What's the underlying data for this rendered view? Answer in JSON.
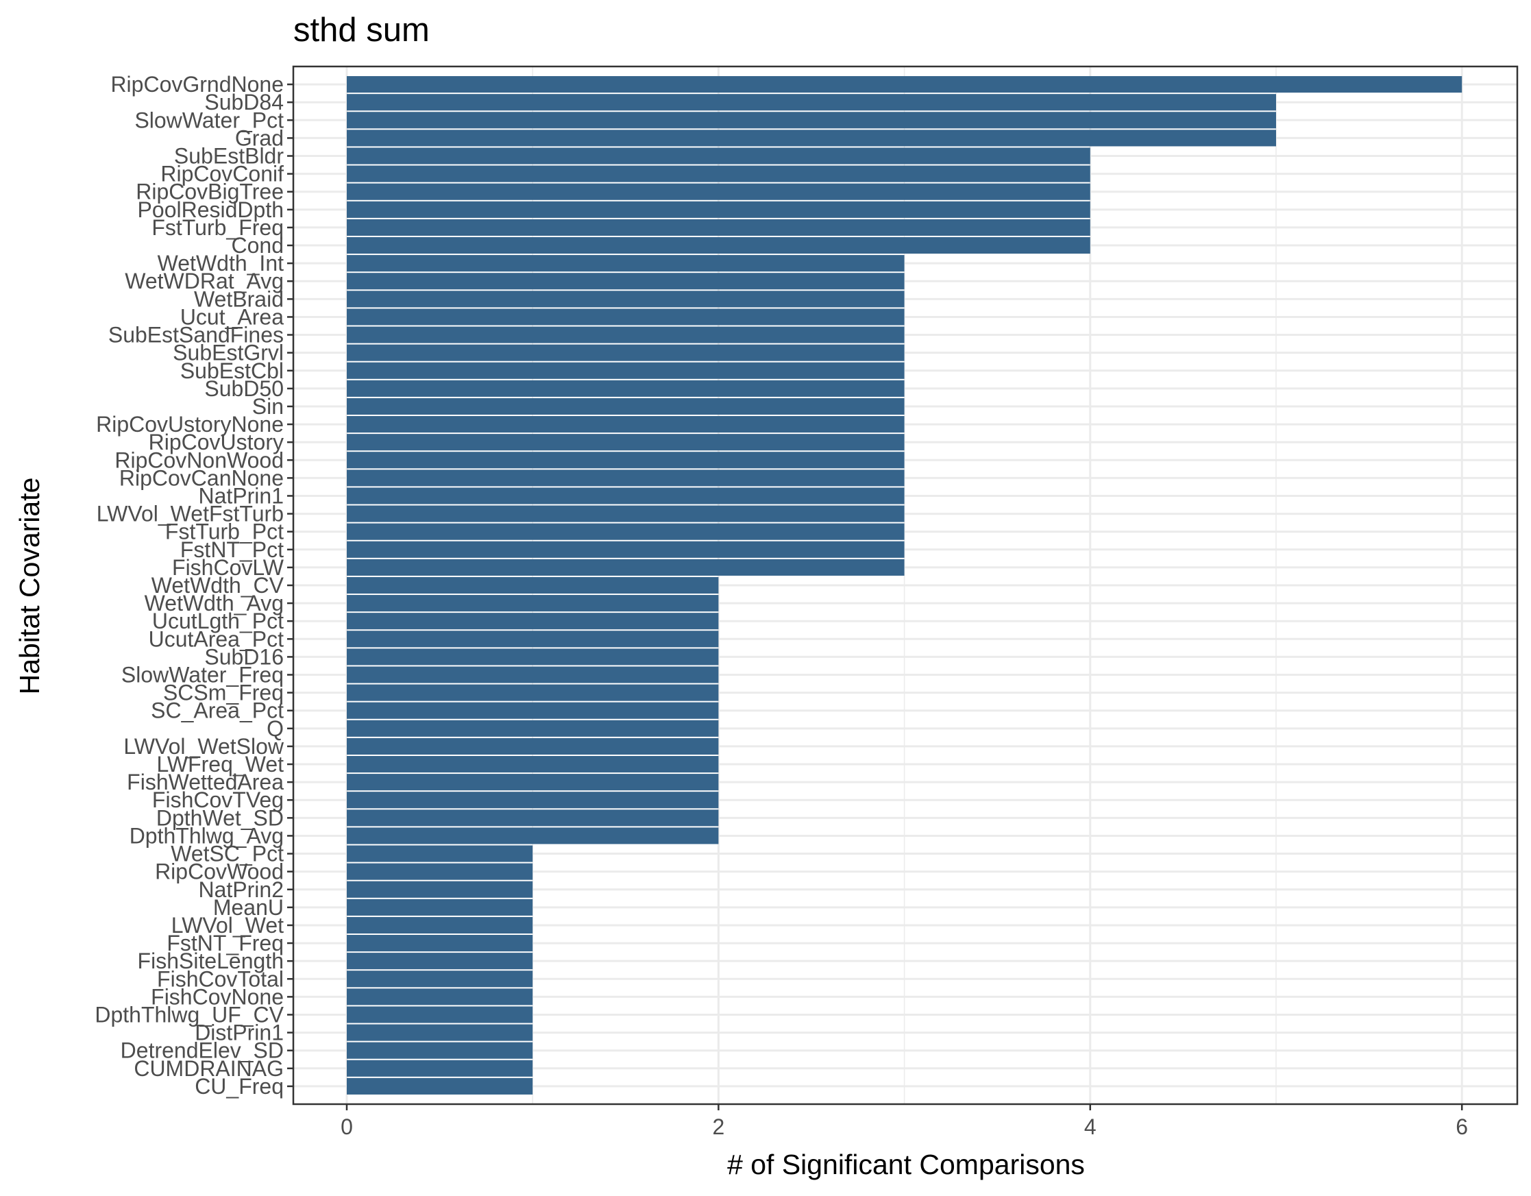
{
  "chart_data": {
    "type": "bar",
    "orientation": "horizontal",
    "title": "sthd sum",
    "xlabel": "# of Significant Comparisons",
    "ylabel": "Habitat Covariate",
    "xlim": [
      -0.3,
      6.3
    ],
    "xticks": [
      "0",
      "2",
      "4",
      "6"
    ],
    "grid": true,
    "bar_color": "#36648B",
    "categories": [
      "RipCovGrndNone",
      "SubD84",
      "SlowWater_Pct",
      "Grad",
      "SubEstBldr",
      "RipCovConif",
      "RipCovBigTree",
      "PoolResidDpth",
      "FstTurb_Freq",
      "Cond",
      "WetWdth_Int",
      "WetWDRat_Avg",
      "WetBraid",
      "Ucut_Area",
      "SubEstSandFines",
      "SubEstGrvl",
      "SubEstCbl",
      "SubD50",
      "Sin",
      "RipCovUstoryNone",
      "RipCovUstory",
      "RipCovNonWood",
      "RipCovCanNone",
      "NatPrin1",
      "LWVol_WetFstTurb",
      "FstTurb_Pct",
      "FstNT_Pct",
      "FishCovLW",
      "WetWdth_CV",
      "WetWdth_Avg",
      "UcutLgth_Pct",
      "UcutArea_Pct",
      "SubD16",
      "SlowWater_Freq",
      "SCSm_Freq",
      "SC_Area_Pct",
      "Q",
      "LWVol_WetSlow",
      "LWFreq_Wet",
      "FishWettedArea",
      "FishCovTVeg",
      "DpthWet_SD",
      "DpthThlwg_Avg",
      "WetSC_Pct",
      "RipCovWood",
      "NatPrin2",
      "MeanU",
      "LWVol_Wet",
      "FstNT_Freq",
      "FishSiteLength",
      "FishCovTotal",
      "FishCovNone",
      "DpthThlwg_UF_CV",
      "DistPrin1",
      "DetrendElev_SD",
      "CUMDRAINAG",
      "CU_Freq"
    ],
    "values": [
      6,
      5,
      5,
      5,
      4,
      4,
      4,
      4,
      4,
      4,
      3,
      3,
      3,
      3,
      3,
      3,
      3,
      3,
      3,
      3,
      3,
      3,
      3,
      3,
      3,
      3,
      3,
      3,
      2,
      2,
      2,
      2,
      2,
      2,
      2,
      2,
      2,
      2,
      2,
      2,
      2,
      2,
      2,
      1,
      1,
      1,
      1,
      1,
      1,
      1,
      1,
      1,
      1,
      1,
      1,
      1,
      1
    ]
  }
}
